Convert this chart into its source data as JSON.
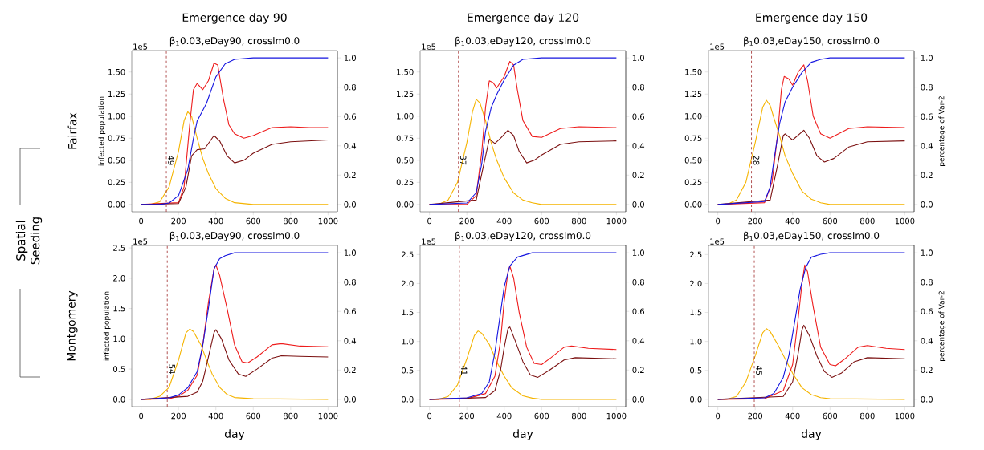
{
  "chart_data": [
    {
      "type": "line",
      "title": "β$_{1}$0.03,eDay90, crosslm0.0",
      "ylabel": "infected population",
      "annotations": [
        "1e5",
        "Emergence day 90",
        "Fairfax",
        "Spatial Seeding",
        {
          "text": "49",
          "x": 135,
          "y": 0.5
        }
      ],
      "marker": "none",
      "line_style": "solid",
      "xlim": [
        -50,
        1050
      ],
      "ylim": [
        -0.083,
        1.743
      ],
      "y2lim": [
        -0.05,
        1.05
      ],
      "xticks": [
        0,
        200,
        400,
        600,
        800,
        1000
      ],
      "yticks": [
        {
          "value": 0,
          "label": "0.00"
        },
        {
          "value": 0.25,
          "label": "0.25"
        },
        {
          "value": 0.5,
          "label": "0.50"
        },
        {
          "value": 0.75,
          "label": "0.75"
        },
        {
          "value": 1,
          "label": "1.00"
        },
        {
          "value": 1.25,
          "label": "1.25"
        },
        {
          "value": 1.5,
          "label": "1.50"
        }
      ],
      "y2ticks": [
        {
          "value": 0,
          "label": "0.0"
        },
        {
          "value": 0.2,
          "label": "0.2"
        },
        {
          "value": 0.4,
          "label": "0.4"
        },
        {
          "value": 0.6,
          "label": "0.6"
        },
        {
          "value": 0.8,
          "label": "0.8"
        },
        {
          "value": 1,
          "label": "1.0"
        }
      ],
      "ref_lines": [
        {
          "axis": "x",
          "value": 135,
          "color": "#a02828",
          "line_style": "dashed"
        }
      ],
      "series": [
        {
          "type": "line",
          "color": "#f5b400",
          "x": [
            0,
            50,
            100,
            150,
            200,
            230,
            250,
            270,
            300,
            330,
            360,
            400,
            450,
            500,
            600,
            1000
          ],
          "values": [
            0,
            0,
            0.03,
            0.2,
            0.6,
            0.95,
            1.05,
            1.0,
            0.75,
            0.52,
            0.35,
            0.18,
            0.07,
            0.02,
            0,
            0
          ]
        },
        {
          "type": "line",
          "color": "#ee1c1c",
          "x": [
            0,
            200,
            230,
            260,
            280,
            300,
            330,
            360,
            390,
            410,
            440,
            470,
            500,
            550,
            600,
            700,
            800,
            900,
            1000
          ],
          "values": [
            0,
            0.02,
            0.2,
            0.9,
            1.3,
            1.37,
            1.3,
            1.4,
            1.6,
            1.58,
            1.2,
            0.9,
            0.8,
            0.75,
            0.78,
            0.87,
            0.88,
            0.87,
            0.87
          ]
        },
        {
          "type": "line",
          "color": "#7b1010",
          "x": [
            0,
            200,
            240,
            270,
            300,
            340,
            390,
            420,
            460,
            500,
            550,
            600,
            700,
            800,
            1000
          ],
          "values": [
            0,
            0.01,
            0.2,
            0.55,
            0.62,
            0.63,
            0.78,
            0.72,
            0.55,
            0.47,
            0.5,
            0.58,
            0.68,
            0.71,
            0.73
          ]
        },
        {
          "type": "line",
          "color": "#1414e0",
          "axis": "y2",
          "x": [
            0,
            100,
            150,
            200,
            250,
            280,
            300,
            350,
            400,
            450,
            500,
            600,
            1000
          ],
          "values": [
            0,
            0,
            0.01,
            0.06,
            0.24,
            0.45,
            0.57,
            0.69,
            0.87,
            0.96,
            0.99,
            1.0,
            1.0
          ]
        }
      ]
    },
    {
      "type": "line",
      "title": "β$_{1}$0.03,eDay120, crosslm0.0",
      "annotations": [
        "1e5",
        "Emergence day 120",
        {
          "text": "37",
          "x": 155,
          "y": 0.5
        }
      ],
      "marker": "none",
      "line_style": "solid",
      "xlim": [
        -50,
        1050
      ],
      "ylim": [
        -0.083,
        1.743
      ],
      "y2lim": [
        -0.05,
        1.05
      ],
      "xticks": [
        0,
        200,
        400,
        600,
        800,
        1000
      ],
      "yticks": [
        {
          "value": 0,
          "label": "0.00"
        },
        {
          "value": 0.25,
          "label": "0.25"
        },
        {
          "value": 0.5,
          "label": "0.50"
        },
        {
          "value": 0.75,
          "label": "0.75"
        },
        {
          "value": 1,
          "label": "1.00"
        },
        {
          "value": 1.25,
          "label": "1.25"
        },
        {
          "value": 1.5,
          "label": "1.50"
        }
      ],
      "y2ticks": [
        {
          "value": 0,
          "label": "0.0"
        },
        {
          "value": 0.2,
          "label": "0.2"
        },
        {
          "value": 0.4,
          "label": "0.4"
        },
        {
          "value": 0.6,
          "label": "0.6"
        },
        {
          "value": 0.8,
          "label": "0.8"
        },
        {
          "value": 1,
          "label": "1.0"
        }
      ],
      "ref_lines": [
        {
          "axis": "x",
          "value": 155,
          "color": "#a02828",
          "line_style": "dashed"
        }
      ],
      "series": [
        {
          "type": "line",
          "color": "#f5b400",
          "x": [
            0,
            50,
            100,
            150,
            200,
            230,
            250,
            270,
            300,
            330,
            360,
            400,
            450,
            500,
            550,
            600,
            1000
          ],
          "values": [
            0,
            0,
            0.05,
            0.25,
            0.7,
            1.05,
            1.19,
            1.15,
            0.95,
            0.7,
            0.5,
            0.3,
            0.13,
            0.05,
            0.02,
            0,
            0
          ]
        },
        {
          "type": "line",
          "color": "#ee1c1c",
          "x": [
            0,
            200,
            250,
            280,
            300,
            320,
            340,
            360,
            400,
            430,
            450,
            470,
            500,
            550,
            600,
            700,
            800,
            1000
          ],
          "values": [
            0,
            0,
            0.1,
            0.6,
            1.1,
            1.4,
            1.38,
            1.32,
            1.45,
            1.62,
            1.58,
            1.3,
            0.95,
            0.77,
            0.76,
            0.86,
            0.88,
            0.87
          ]
        },
        {
          "type": "line",
          "color": "#7b1010",
          "x": [
            0,
            250,
            290,
            320,
            350,
            380,
            420,
            450,
            480,
            520,
            560,
            600,
            700,
            800,
            1000
          ],
          "values": [
            0,
            0.05,
            0.45,
            0.74,
            0.69,
            0.75,
            0.84,
            0.78,
            0.6,
            0.47,
            0.5,
            0.56,
            0.68,
            0.71,
            0.72
          ]
        },
        {
          "type": "line",
          "color": "#1414e0",
          "axis": "y2",
          "x": [
            0,
            200,
            250,
            280,
            300,
            330,
            360,
            400,
            450,
            500,
            600,
            1000
          ],
          "values": [
            0,
            0.01,
            0.08,
            0.28,
            0.5,
            0.66,
            0.75,
            0.85,
            0.95,
            0.99,
            1.0,
            1.0
          ]
        }
      ]
    },
    {
      "type": "line",
      "title": "β$_{1}$0.03,eDay150, crosslm0.0",
      "y2label": "percentage of Var-2",
      "annotations": [
        "1e5",
        "Emergence day 150",
        {
          "text": "28",
          "x": 180,
          "y": 0.5
        }
      ],
      "marker": "none",
      "line_style": "solid",
      "xlim": [
        -50,
        1050
      ],
      "ylim": [
        -0.083,
        1.743
      ],
      "y2lim": [
        -0.05,
        1.05
      ],
      "xticks": [
        0,
        200,
        400,
        600,
        800,
        1000
      ],
      "yticks": [
        {
          "value": 0,
          "label": "0.00"
        },
        {
          "value": 0.25,
          "label": "0.25"
        },
        {
          "value": 0.5,
          "label": "0.50"
        },
        {
          "value": 0.75,
          "label": "0.75"
        },
        {
          "value": 1,
          "label": "1.00"
        },
        {
          "value": 1.25,
          "label": "1.25"
        },
        {
          "value": 1.5,
          "label": "1.50"
        }
      ],
      "y2ticks": [
        {
          "value": 0,
          "label": "0.0"
        },
        {
          "value": 0.2,
          "label": "0.2"
        },
        {
          "value": 0.4,
          "label": "0.4"
        },
        {
          "value": 0.6,
          "label": "0.6"
        },
        {
          "value": 0.8,
          "label": "0.8"
        },
        {
          "value": 1,
          "label": "1.0"
        }
      ],
      "ref_lines": [
        {
          "axis": "x",
          "value": 180,
          "color": "#a02828",
          "line_style": "dashed"
        }
      ],
      "series": [
        {
          "type": "line",
          "color": "#f5b400",
          "x": [
            0,
            50,
            100,
            150,
            200,
            240,
            260,
            280,
            300,
            330,
            360,
            400,
            450,
            500,
            550,
            600,
            1000
          ],
          "values": [
            0,
            0,
            0.05,
            0.25,
            0.7,
            1.1,
            1.18,
            1.12,
            0.98,
            0.78,
            0.55,
            0.35,
            0.15,
            0.06,
            0.02,
            0,
            0
          ]
        },
        {
          "type": "line",
          "color": "#ee1c1c",
          "x": [
            0,
            250,
            290,
            320,
            340,
            355,
            380,
            400,
            430,
            460,
            480,
            510,
            550,
            600,
            700,
            800,
            1000
          ],
          "values": [
            0,
            0.02,
            0.25,
            0.8,
            1.3,
            1.45,
            1.42,
            1.35,
            1.5,
            1.58,
            1.4,
            1.0,
            0.8,
            0.75,
            0.86,
            0.88,
            0.87
          ]
        },
        {
          "type": "line",
          "color": "#7b1010",
          "x": [
            0,
            280,
            320,
            350,
            360,
            400,
            460,
            490,
            530,
            570,
            620,
            700,
            800,
            1000
          ],
          "values": [
            0,
            0.05,
            0.45,
            0.78,
            0.8,
            0.73,
            0.84,
            0.75,
            0.55,
            0.48,
            0.52,
            0.65,
            0.71,
            0.72
          ]
        },
        {
          "type": "line",
          "color": "#1414e0",
          "axis": "y2",
          "x": [
            0,
            250,
            280,
            300,
            330,
            360,
            400,
            450,
            500,
            550,
            600,
            1000
          ],
          "values": [
            0,
            0.02,
            0.12,
            0.3,
            0.55,
            0.7,
            0.8,
            0.9,
            0.97,
            0.99,
            1.0,
            1.0
          ]
        }
      ]
    },
    {
      "type": "line",
      "title": "β$_{1}$0.03,eDay90, crosslm0.0",
      "xlabel": "day",
      "ylabel": "infected population",
      "annotations": [
        "1e5",
        "Montgomery",
        {
          "text": "54",
          "x": 140,
          "y": 0.5
        }
      ],
      "marker": "none",
      "line_style": "solid",
      "xlim": [
        -50,
        1050
      ],
      "ylim": [
        -0.121,
        2.541
      ],
      "y2lim": [
        -0.05,
        1.05
      ],
      "xticks": [
        0,
        200,
        400,
        600,
        800,
        1000
      ],
      "yticks": [
        {
          "value": 0,
          "label": "0.0"
        },
        {
          "value": 0.5,
          "label": "0.5"
        },
        {
          "value": 1,
          "label": "1.0"
        },
        {
          "value": 1.5,
          "label": "1.5"
        },
        {
          "value": 2,
          "label": "2.0"
        },
        {
          "value": 2.5,
          "label": "2.5"
        }
      ],
      "y2ticks": [
        {
          "value": 0,
          "label": "0.0"
        },
        {
          "value": 0.2,
          "label": "0.2"
        },
        {
          "value": 0.4,
          "label": "0.4"
        },
        {
          "value": 0.6,
          "label": "0.6"
        },
        {
          "value": 0.8,
          "label": "0.8"
        },
        {
          "value": 1,
          "label": "1.0"
        }
      ],
      "ref_lines": [
        {
          "axis": "x",
          "value": 140,
          "color": "#a02828",
          "line_style": "dashed"
        }
      ],
      "series": [
        {
          "type": "line",
          "color": "#f5b400",
          "x": [
            0,
            50,
            100,
            150,
            200,
            240,
            260,
            280,
            320,
            350,
            380,
            420,
            460,
            500,
            600,
            1000
          ],
          "values": [
            0,
            0,
            0.05,
            0.2,
            0.65,
            1.1,
            1.16,
            1.12,
            0.9,
            0.65,
            0.42,
            0.2,
            0.08,
            0.03,
            0.01,
            0
          ]
        },
        {
          "type": "line",
          "color": "#ee1c1c",
          "x": [
            0,
            150,
            200,
            250,
            300,
            330,
            360,
            390,
            400,
            420,
            460,
            500,
            540,
            570,
            620,
            700,
            750,
            850,
            1000
          ],
          "values": [
            0,
            0.01,
            0.05,
            0.15,
            0.4,
            0.9,
            1.6,
            2.15,
            2.22,
            2.05,
            1.5,
            0.9,
            0.62,
            0.6,
            0.7,
            0.9,
            0.92,
            0.88,
            0.87
          ]
        },
        {
          "type": "line",
          "color": "#7b1010",
          "x": [
            0,
            250,
            300,
            330,
            360,
            390,
            400,
            430,
            470,
            520,
            560,
            620,
            700,
            750,
            850,
            1000
          ],
          "values": [
            0,
            0.05,
            0.12,
            0.3,
            0.7,
            1.1,
            1.15,
            1.0,
            0.65,
            0.42,
            0.38,
            0.5,
            0.68,
            0.72,
            0.71,
            0.7
          ]
        },
        {
          "type": "line",
          "color": "#1414e0",
          "axis": "y2",
          "x": [
            0,
            150,
            200,
            250,
            300,
            330,
            360,
            390,
            420,
            450,
            500,
            1000
          ],
          "values": [
            0,
            0.01,
            0.03,
            0.08,
            0.19,
            0.37,
            0.62,
            0.89,
            0.96,
            0.98,
            1.0,
            1.0
          ]
        }
      ]
    },
    {
      "type": "line",
      "title": "β$_{1}$0.03,eDay120, crosslm0.0",
      "xlabel": "day",
      "marker": "none",
      "line_style": "solid",
      "xlim": [
        -50,
        1050
      ],
      "ylim": [
        -0.127,
        2.657
      ],
      "y2lim": [
        -0.05,
        1.05
      ],
      "xticks": [
        0,
        200,
        400,
        600,
        800,
        1000
      ],
      "yticks": [
        {
          "value": 0,
          "label": "0.0"
        },
        {
          "value": 0.5,
          "label": "0.5"
        },
        {
          "value": 1,
          "label": "1.0"
        },
        {
          "value": 1.5,
          "label": "1.5"
        },
        {
          "value": 2,
          "label": "2.0"
        },
        {
          "value": 2.5,
          "label": "2.5"
        }
      ],
      "y2ticks": [
        {
          "value": 0,
          "label": "0.0"
        },
        {
          "value": 0.2,
          "label": "0.2"
        },
        {
          "value": 0.4,
          "label": "0.4"
        },
        {
          "value": 0.6,
          "label": "0.6"
        },
        {
          "value": 0.8,
          "label": "0.8"
        },
        {
          "value": 1,
          "label": "1.0"
        }
      ],
      "ref_lines": [
        {
          "axis": "x",
          "value": 160,
          "color": "#a02828",
          "line_style": "dashed"
        }
      ],
      "annotations": [
        "1e5",
        {
          "text": "41",
          "x": 160,
          "y": 0.5
        }
      ],
      "series": [
        {
          "type": "line",
          "color": "#f5b400",
          "x": [
            0,
            50,
            100,
            150,
            200,
            240,
            260,
            280,
            320,
            360,
            400,
            440,
            500,
            550,
            600,
            1000
          ],
          "values": [
            0,
            0,
            0.05,
            0.25,
            0.7,
            1.1,
            1.18,
            1.14,
            0.95,
            0.65,
            0.4,
            0.2,
            0.06,
            0.02,
            0,
            0
          ]
        },
        {
          "type": "line",
          "color": "#ee1c1c",
          "x": [
            0,
            200,
            300,
            350,
            380,
            400,
            420,
            430,
            450,
            480,
            520,
            560,
            600,
            650,
            720,
            760,
            850,
            1000
          ],
          "values": [
            0,
            0.01,
            0.1,
            0.4,
            1.0,
            1.7,
            2.2,
            2.3,
            2.1,
            1.5,
            0.9,
            0.62,
            0.6,
            0.72,
            0.9,
            0.92,
            0.88,
            0.86
          ]
        },
        {
          "type": "line",
          "color": "#7b1010",
          "x": [
            0,
            300,
            350,
            380,
            400,
            420,
            430,
            460,
            500,
            540,
            580,
            640,
            720,
            780,
            1000
          ],
          "values": [
            0,
            0.03,
            0.15,
            0.5,
            0.9,
            1.22,
            1.25,
            1.0,
            0.65,
            0.42,
            0.38,
            0.5,
            0.68,
            0.72,
            0.7
          ]
        },
        {
          "type": "line",
          "color": "#1414e0",
          "axis": "y2",
          "x": [
            0,
            200,
            280,
            320,
            350,
            380,
            400,
            430,
            470,
            550,
            1000
          ],
          "values": [
            0,
            0.01,
            0.04,
            0.12,
            0.32,
            0.59,
            0.77,
            0.91,
            0.97,
            1.0,
            1.0
          ]
        }
      ]
    },
    {
      "type": "line",
      "title": "β$_{1}$0.03,eDay150, crosslm0.0",
      "xlabel": "day",
      "y2label": "percentage of Var-2",
      "marker": "none",
      "line_style": "solid",
      "xlim": [
        -50,
        1050
      ],
      "ylim": [
        -0.127,
        2.657
      ],
      "y2lim": [
        -0.05,
        1.05
      ],
      "xticks": [
        0,
        200,
        400,
        600,
        800,
        1000
      ],
      "yticks": [
        {
          "value": 0,
          "label": "0.0"
        },
        {
          "value": 0.5,
          "label": "0.5"
        },
        {
          "value": 1,
          "label": "1.0"
        },
        {
          "value": 1.5,
          "label": "1.5"
        },
        {
          "value": 2,
          "label": "2.0"
        },
        {
          "value": 2.5,
          "label": "2.5"
        }
      ],
      "y2ticks": [
        {
          "value": 0,
          "label": "0.0"
        },
        {
          "value": 0.2,
          "label": "0.2"
        },
        {
          "value": 0.4,
          "label": "0.4"
        },
        {
          "value": 0.6,
          "label": "0.6"
        },
        {
          "value": 0.8,
          "label": "0.8"
        },
        {
          "value": 1,
          "label": "1.0"
        }
      ],
      "ref_lines": [
        {
          "axis": "x",
          "value": 195,
          "color": "#a02828",
          "line_style": "dashed"
        }
      ],
      "annotations": [
        "1e5",
        {
          "text": "45",
          "x": 195,
          "y": 0.5
        }
      ],
      "series": [
        {
          "type": "line",
          "color": "#f5b400",
          "x": [
            0,
            50,
            100,
            150,
            200,
            240,
            260,
            280,
            320,
            360,
            400,
            450,
            500,
            550,
            600,
            1000
          ],
          "values": [
            0,
            0,
            0.05,
            0.3,
            0.75,
            1.15,
            1.22,
            1.17,
            0.95,
            0.7,
            0.45,
            0.2,
            0.08,
            0.03,
            0.01,
            0
          ]
        },
        {
          "type": "line",
          "color": "#ee1c1c",
          "x": [
            0,
            250,
            350,
            400,
            430,
            450,
            465,
            480,
            510,
            550,
            600,
            630,
            680,
            750,
            800,
            900,
            1000
          ],
          "values": [
            0,
            0.01,
            0.15,
            0.6,
            1.4,
            2.0,
            2.32,
            2.2,
            1.6,
            0.9,
            0.6,
            0.58,
            0.7,
            0.9,
            0.93,
            0.88,
            0.86
          ]
        },
        {
          "type": "line",
          "color": "#7b1010",
          "x": [
            0,
            350,
            400,
            430,
            450,
            460,
            490,
            530,
            570,
            610,
            660,
            730,
            800,
            1000
          ],
          "values": [
            0,
            0.05,
            0.3,
            0.8,
            1.2,
            1.28,
            1.1,
            0.75,
            0.48,
            0.38,
            0.45,
            0.65,
            0.72,
            0.7
          ]
        },
        {
          "type": "line",
          "color": "#1414e0",
          "axis": "y2",
          "x": [
            0,
            250,
            300,
            350,
            380,
            410,
            440,
            470,
            500,
            550,
            600,
            1000
          ],
          "values": [
            0,
            0.01,
            0.04,
            0.15,
            0.3,
            0.52,
            0.75,
            0.9,
            0.97,
            0.99,
            1.0,
            1.0
          ]
        }
      ]
    }
  ]
}
